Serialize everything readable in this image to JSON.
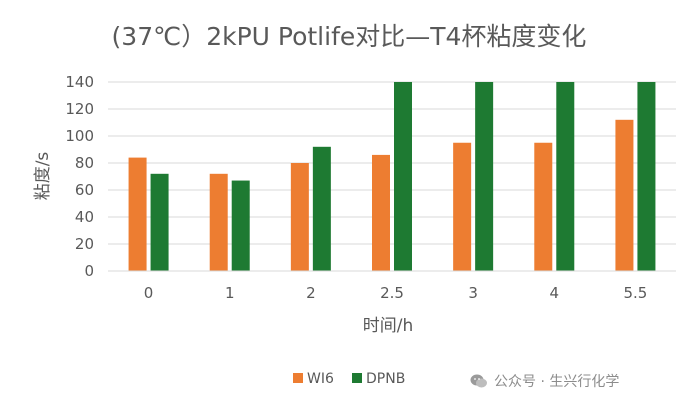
{
  "chart_data": {
    "type": "bar",
    "title": "(37℃）2kPU Potlife对比—T4杯粘度变化",
    "xlabel": "时间/h",
    "ylabel": "粘度/s",
    "ylim": [
      0,
      140
    ],
    "yticks": [
      0,
      20,
      40,
      60,
      80,
      100,
      120,
      140
    ],
    "categories": [
      "0",
      "1",
      "2",
      "2.5",
      "3",
      "4",
      "5.5"
    ],
    "series": [
      {
        "name": "WI6",
        "color": "#ed7d31",
        "values": [
          84,
          72,
          80,
          86,
          95,
          95,
          112
        ]
      },
      {
        "name": "DPNB",
        "color": "#1e7a32",
        "values": [
          72,
          67,
          92,
          140,
          140,
          140,
          140
        ]
      }
    ],
    "grid": true,
    "legend": "bottom"
  },
  "watermark": {
    "icon": "wechat-icon",
    "text": "公众号 · 生兴行化学"
  }
}
